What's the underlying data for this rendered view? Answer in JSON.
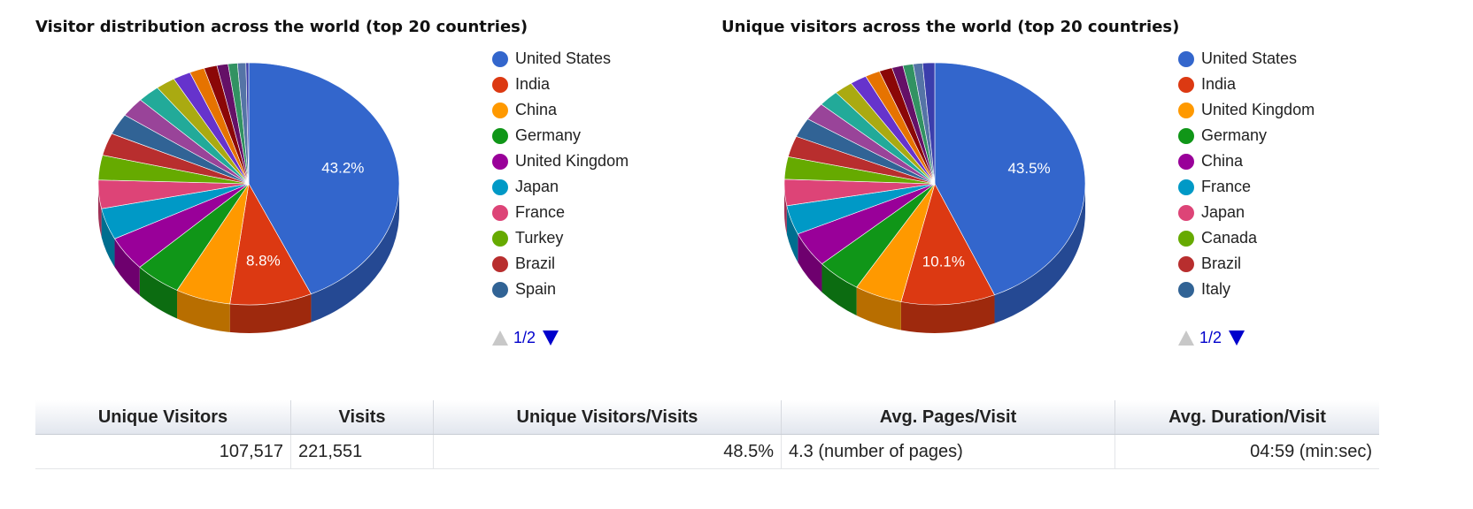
{
  "chart_data": [
    {
      "type": "pie",
      "style": "3d",
      "title": "Visitor distribution across the world (top 20 countries)",
      "legend_position": "right",
      "legend_page": "1/2",
      "slices": [
        {
          "label": "United States",
          "value": 43.2,
          "color": "#3366cc",
          "show_label": "43.2%"
        },
        {
          "label": "India",
          "value": 8.8,
          "color": "#dc3912",
          "show_label": "8.8%"
        },
        {
          "label": "China",
          "value": 5.9,
          "color": "#ff9900"
        },
        {
          "label": "Germany",
          "value": 5.0,
          "color": "#109618"
        },
        {
          "label": "United Kingdom",
          "value": 4.6,
          "color": "#990099"
        },
        {
          "label": "Japan",
          "value": 4.2,
          "color": "#0099c6"
        },
        {
          "label": "France",
          "value": 3.8,
          "color": "#dd4477"
        },
        {
          "label": "Turkey",
          "value": 3.3,
          "color": "#66aa00"
        },
        {
          "label": "Brazil",
          "value": 3.0,
          "color": "#b82e2e"
        },
        {
          "label": "Spain",
          "value": 2.8,
          "color": "#316395"
        },
        {
          "label": "",
          "value": 2.6,
          "color": "#994499"
        },
        {
          "label": "",
          "value": 2.4,
          "color": "#22aa99"
        },
        {
          "label": "",
          "value": 2.1,
          "color": "#aaaa11"
        },
        {
          "label": "",
          "value": 1.9,
          "color": "#6633cc"
        },
        {
          "label": "",
          "value": 1.6,
          "color": "#e67300"
        },
        {
          "label": "",
          "value": 1.4,
          "color": "#8b0707"
        },
        {
          "label": "",
          "value": 1.2,
          "color": "#651067"
        },
        {
          "label": "",
          "value": 1.0,
          "color": "#329262"
        },
        {
          "label": "",
          "value": 0.9,
          "color": "#5574a6"
        },
        {
          "label": "",
          "value": 0.3,
          "color": "#3b3eac"
        }
      ]
    },
    {
      "type": "pie",
      "style": "3d",
      "title": "Unique visitors across the world (top 20 countries)",
      "legend_position": "right",
      "legend_page": "1/2",
      "slices": [
        {
          "label": "United States",
          "value": 43.5,
          "color": "#3366cc",
          "show_label": "43.5%"
        },
        {
          "label": "India",
          "value": 10.1,
          "color": "#dc3912",
          "show_label": "10.1%"
        },
        {
          "label": "United Kingdom",
          "value": 5.1,
          "color": "#ff9900"
        },
        {
          "label": "Germany",
          "value": 4.8,
          "color": "#109618"
        },
        {
          "label": "China",
          "value": 4.7,
          "color": "#990099"
        },
        {
          "label": "France",
          "value": 3.9,
          "color": "#0099c6"
        },
        {
          "label": "Japan",
          "value": 3.5,
          "color": "#dd4477"
        },
        {
          "label": "Canada",
          "value": 3.0,
          "color": "#66aa00"
        },
        {
          "label": "Brazil",
          "value": 2.8,
          "color": "#b82e2e"
        },
        {
          "label": "Italy",
          "value": 2.6,
          "color": "#316395"
        },
        {
          "label": "",
          "value": 2.4,
          "color": "#994499"
        },
        {
          "label": "",
          "value": 2.2,
          "color": "#22aa99"
        },
        {
          "label": "",
          "value": 2.0,
          "color": "#aaaa11"
        },
        {
          "label": "",
          "value": 1.8,
          "color": "#6633cc"
        },
        {
          "label": "",
          "value": 1.6,
          "color": "#e67300"
        },
        {
          "label": "",
          "value": 1.4,
          "color": "#8b0707"
        },
        {
          "label": "",
          "value": 1.2,
          "color": "#651067"
        },
        {
          "label": "",
          "value": 1.1,
          "color": "#329262"
        },
        {
          "label": "",
          "value": 1.0,
          "color": "#5574a6"
        },
        {
          "label": "",
          "value": 1.3,
          "color": "#3b3eac"
        }
      ]
    }
  ],
  "stats_table": {
    "headers": [
      "Unique Visitors",
      "Visits",
      "Unique Visitors/Visits",
      "Avg. Pages/Visit",
      "Avg. Duration/Visit"
    ],
    "row": [
      "107,517",
      "221,551",
      "48.5%",
      "4.3 (number of pages)",
      "04:59 (min:sec)"
    ]
  }
}
